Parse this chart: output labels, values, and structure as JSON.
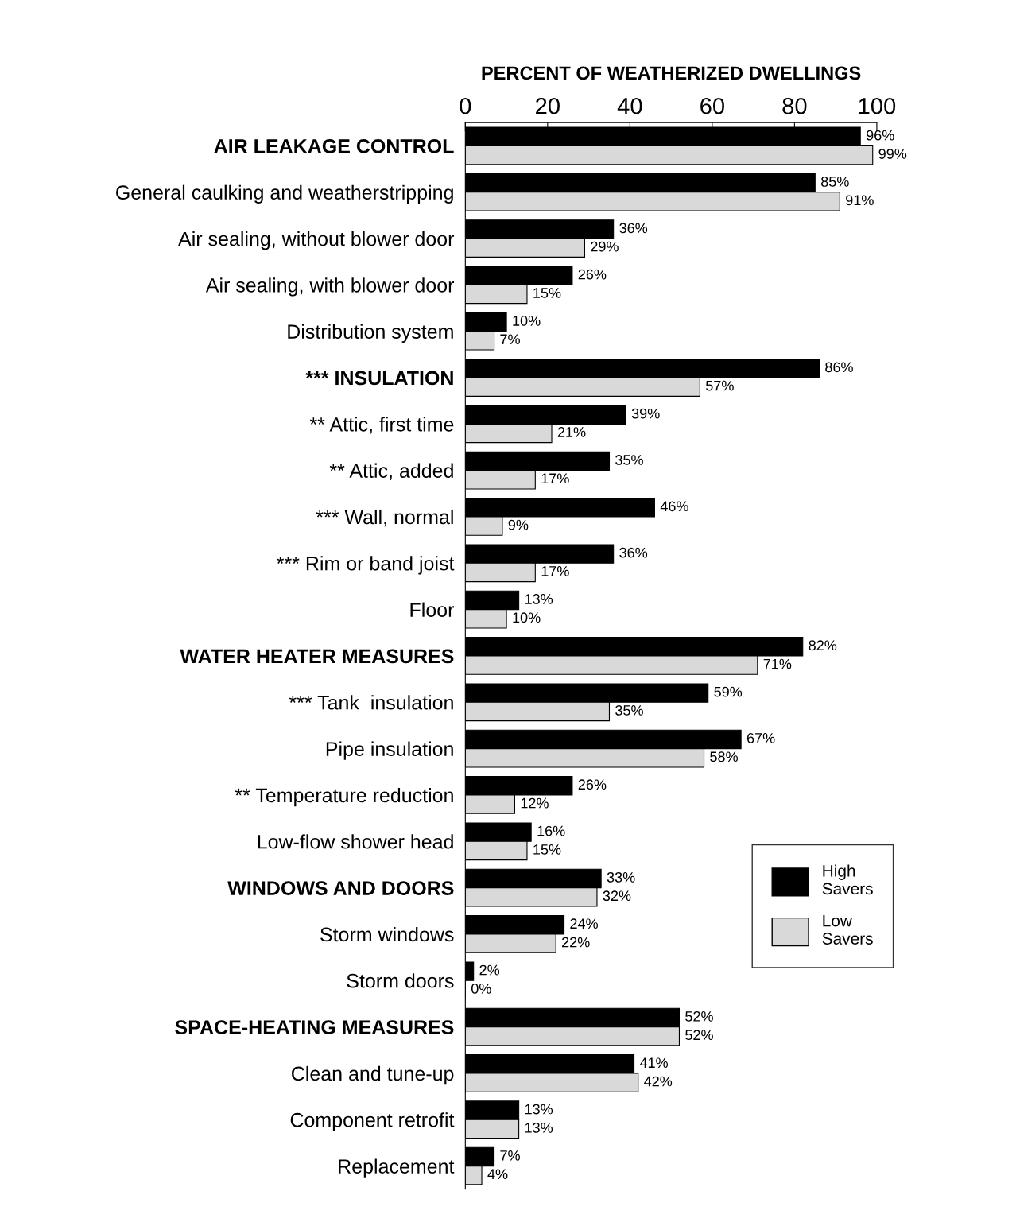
{
  "chart_data": {
    "type": "bar",
    "orientation": "horizontal",
    "xlabel": "PERCENT OF WEATHERIZED DWELLINGS",
    "categories": [
      "AIR LEAKAGE CONTROL",
      "General caulking and weatherstripping",
      "Air sealing, without blower door",
      "Air sealing, with blower door",
      "Distribution system",
      "*** INSULATION",
      "** Attic, first time",
      "** Attic, added",
      "*** Wall, normal",
      "*** Rim or band joist",
      "Floor",
      "WATER HEATER MEASURES",
      "*** Tank  insulation",
      "Pipe insulation",
      "** Temperature reduction",
      "Low-flow shower head",
      "WINDOWS AND DOORS",
      "Storm windows",
      "Storm doors",
      "SPACE-HEATING MEASURES",
      "Clean and tune-up",
      "Component retrofit",
      "Replacement"
    ],
    "xlim": [
      0,
      100
    ],
    "xticks": [
      0,
      20,
      40,
      60,
      80,
      100
    ],
    "grid": false,
    "legend": "bottom right",
    "series": [
      {
        "name": "High\nSavers",
        "color": "#000000",
        "values": [
          96,
          85,
          36,
          26,
          10,
          86,
          39,
          35,
          46,
          36,
          13,
          82,
          59,
          67,
          26,
          16,
          33,
          24,
          2,
          52,
          41,
          13,
          7
        ],
        "value_labels": [
          "96%",
          "85%",
          "36%",
          "26%",
          "10%",
          "86%",
          "39%",
          "35%",
          "46%",
          "36%",
          "13%",
          "82%",
          "59%",
          "67%",
          "26%",
          "16%",
          "33%",
          "24%",
          "2%",
          "52%",
          "41%",
          "13%",
          "7%"
        ]
      },
      {
        "name": "Low\nSavers",
        "color": "#d9d9d9",
        "values": [
          99,
          91,
          29,
          15,
          7,
          57,
          21,
          17,
          9,
          17,
          10,
          71,
          35,
          58,
          12,
          15,
          32,
          22,
          0,
          52,
          42,
          13,
          4
        ],
        "value_labels": [
          "99%",
          "91%",
          "29%",
          "15%",
          "7%",
          "57%",
          "21%",
          "17%",
          "9%",
          "17%",
          "10%",
          "71%",
          "35%",
          "58%",
          "12%",
          "15%",
          "32%",
          "22%",
          "0%",
          "52%",
          "42%",
          "13%",
          "4%"
        ]
      }
    ]
  }
}
